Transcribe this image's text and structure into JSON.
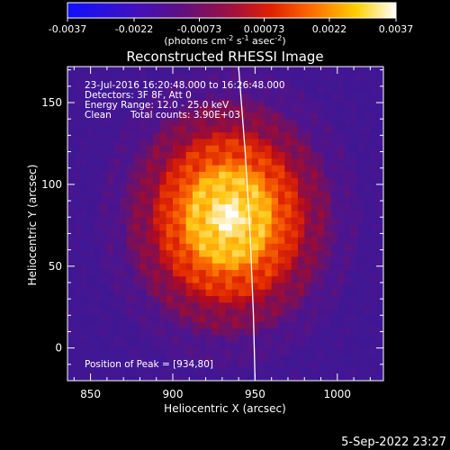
{
  "chart_data": {
    "type": "heatmap",
    "title": "Reconstructed RHESSI Image",
    "colorbar": {
      "ticks": [
        "-0.0037",
        "-0.0022",
        "-0.00073",
        "0.00073",
        "0.0022",
        "0.0037"
      ],
      "tick_values": [
        -0.0037,
        -0.0022,
        -0.00073,
        0.00073,
        0.0022,
        0.0037
      ],
      "range": [
        -0.0037,
        0.0037
      ],
      "unit_parts": [
        "(photons cm",
        "-2",
        " s",
        "-1",
        " asec",
        "-2",
        ")"
      ]
    },
    "xlabel": "Heliocentric X (arcsec)",
    "ylabel": "Heliocentric Y (arcsec)",
    "xlim": [
      836,
      1028
    ],
    "ylim": [
      -20,
      172
    ],
    "xticks": [
      "850",
      "900",
      "950",
      "1000"
    ],
    "xtick_values": [
      850,
      900,
      950,
      1000
    ],
    "yticks": [
      "0",
      "50",
      "100",
      "150"
    ],
    "ytick_values": [
      0,
      50,
      100,
      150
    ],
    "annotations": {
      "time": "23-Jul-2016 16:20:48.000 to 16:26:48.000",
      "detectors": "Detectors: 3F 8F, Att 0",
      "energy": "Energy Range: 12.0 - 25.0 keV",
      "method": "Clean",
      "counts": "Total counts: 3.90E+03",
      "peak_text": "Position of Peak = [934,80]"
    },
    "peak": [
      934,
      80
    ],
    "limb_x_at_y": [
      [
        940,
        172
      ],
      [
        944,
        120
      ],
      [
        947,
        70
      ],
      [
        949,
        20
      ],
      [
        950,
        -20
      ]
    ],
    "timestamp": "5-Sep-2022 23:27",
    "colors": {
      "background": "#000000",
      "text": "#ffffff",
      "limb": "#ffffff"
    }
  }
}
